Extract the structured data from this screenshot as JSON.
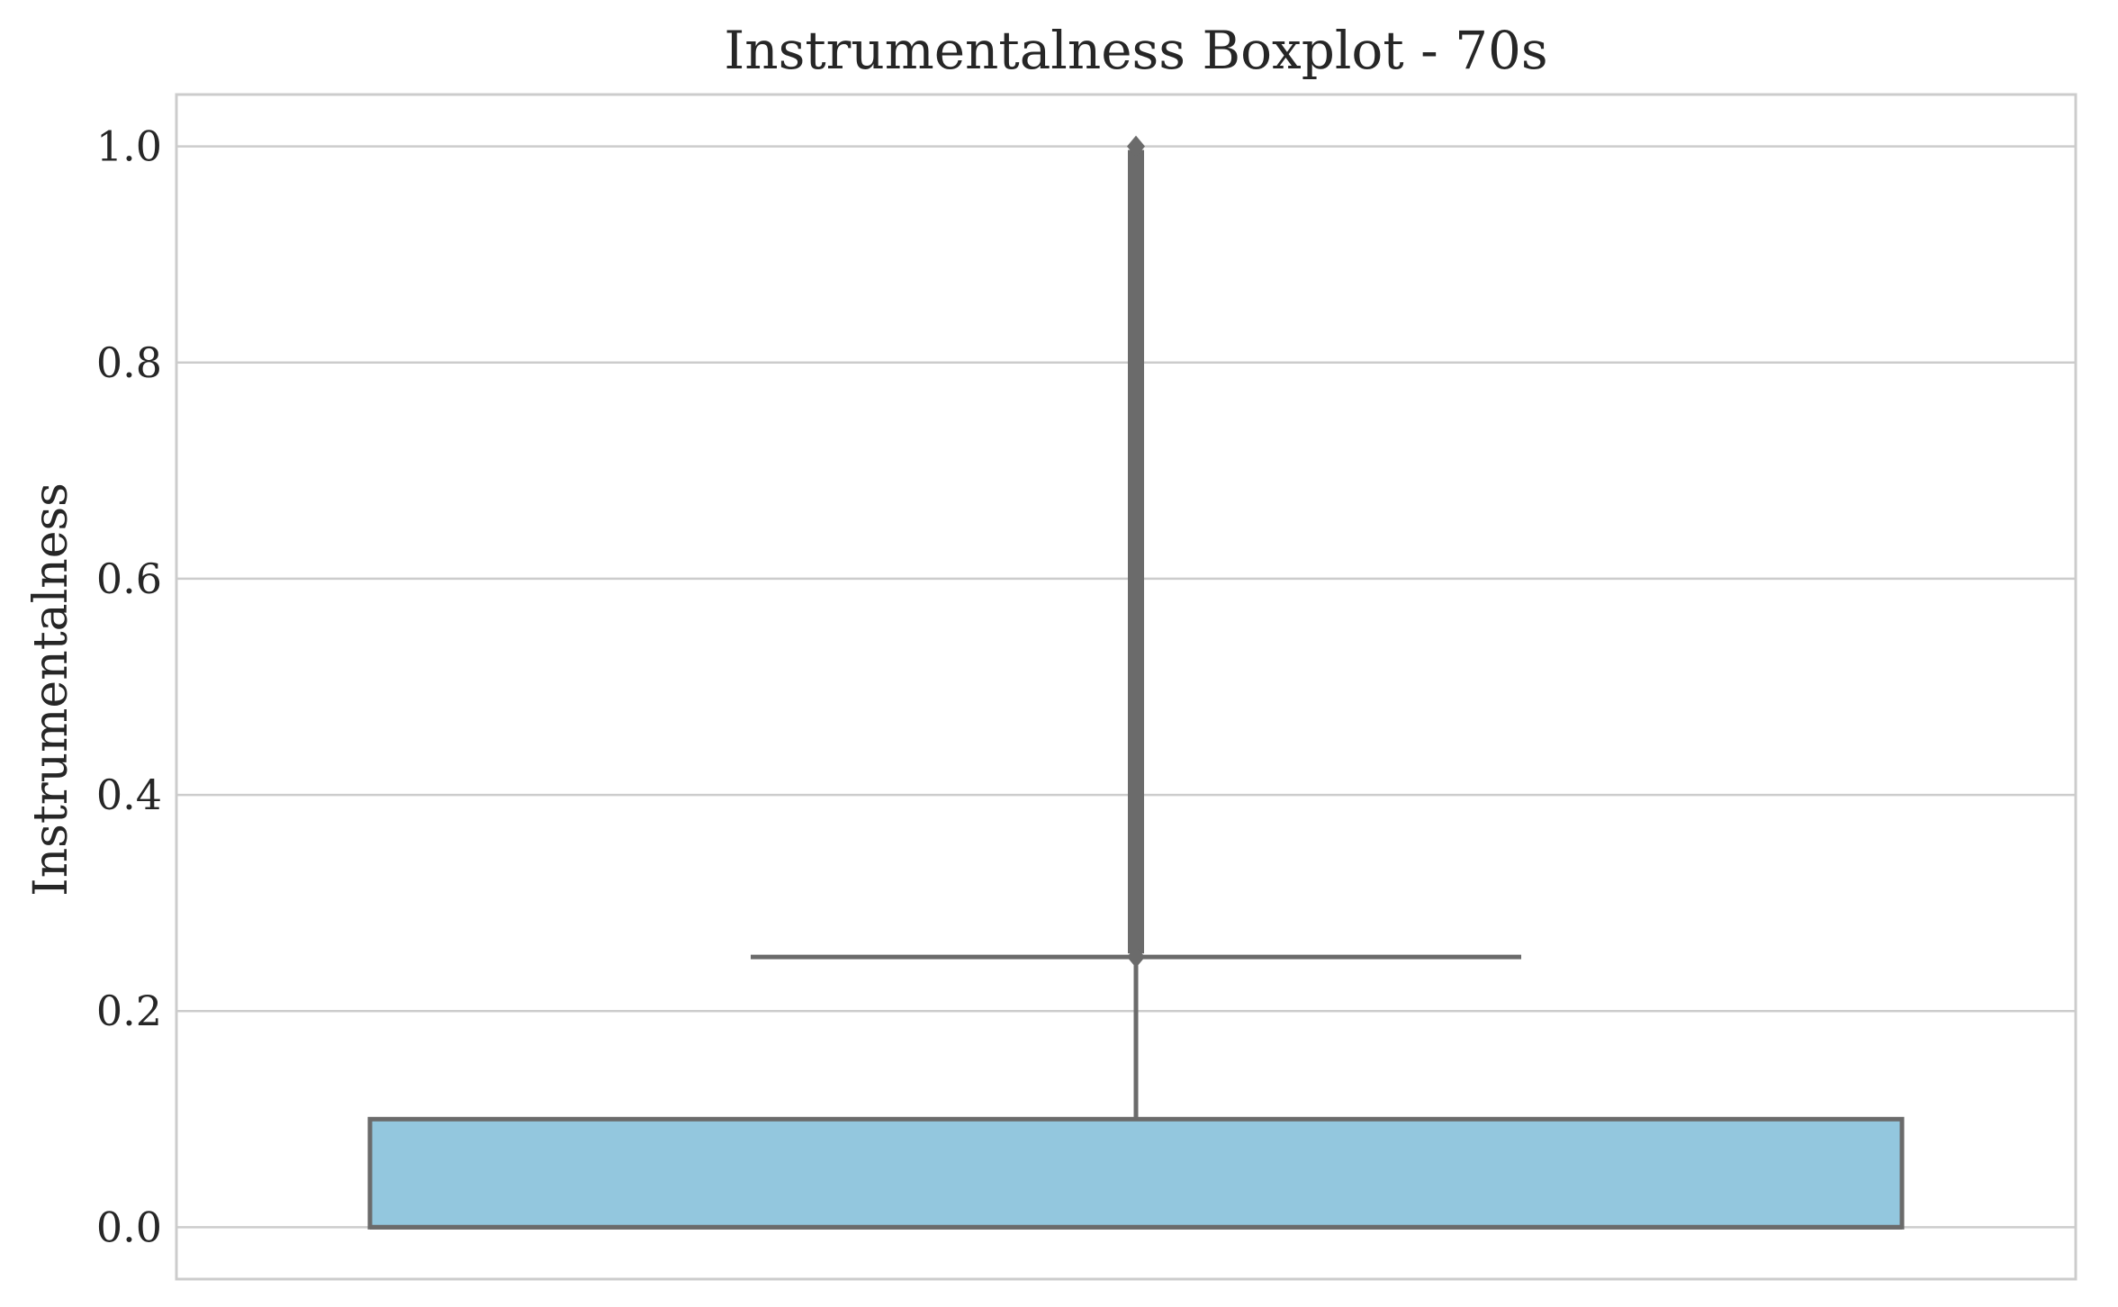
{
  "chart_data": {
    "type": "boxplot",
    "title": "Instrumentalness Boxplot - 70s",
    "xlabel": "",
    "ylabel": "Instrumentalness",
    "ylim": [
      -0.048,
      1.048
    ],
    "yticks": [
      "0.0",
      "0.2",
      "0.4",
      "0.6",
      "0.8",
      "1.0"
    ],
    "grid": true,
    "box": {
      "min": 0.0,
      "q1": 0.0,
      "median": 0.0,
      "q3": 0.1,
      "whisker_high": 0.25,
      "cap_high": 0.25,
      "outliers_range": [
        0.25,
        1.0
      ],
      "fill_color": "#93c7de",
      "line_color": "#6b6b6b"
    }
  }
}
